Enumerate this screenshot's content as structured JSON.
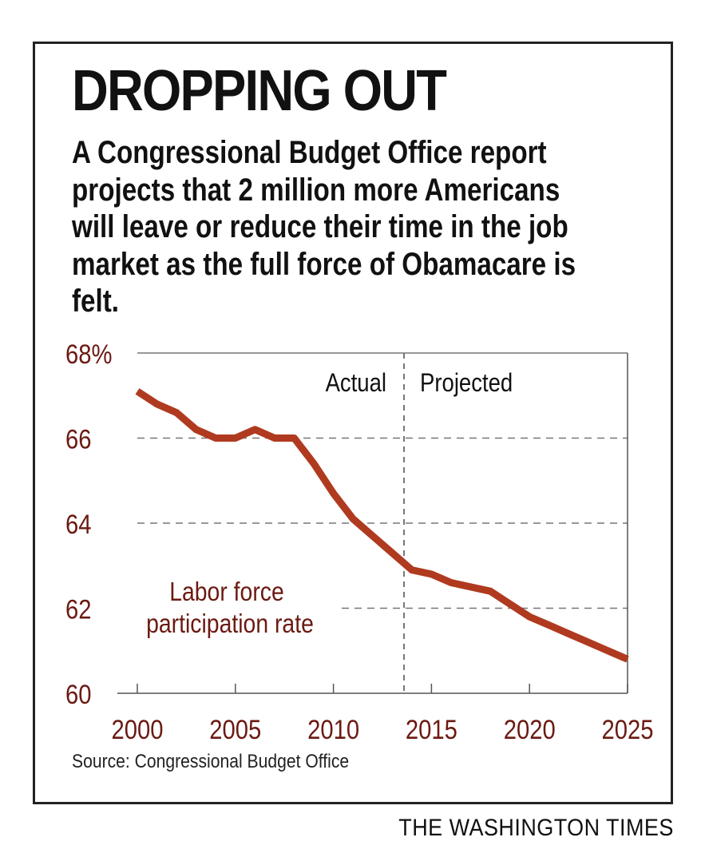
{
  "title": "DROPPING OUT",
  "subtitle": "A Congressional Budget Office report projects that 2 million more Americans will leave or reduce their time in the job market as the full force of Obamacare is felt.",
  "source": "Source: Congressional Budget Office",
  "credit": "THE WASHINGTON TIMES",
  "colors": {
    "line": "#b03a1f",
    "axis_text": "#6b1a12",
    "grid": "#777777",
    "divider": "#777777"
  },
  "chart_data": {
    "type": "line",
    "title": "DROPPING OUT",
    "xlabel": "",
    "ylabel": "",
    "xlim": [
      2000,
      2025
    ],
    "ylim": [
      60,
      68
    ],
    "x_ticks": [
      2000,
      2005,
      2010,
      2015,
      2020,
      2025
    ],
    "y_ticks": [
      {
        "value": 68,
        "label": "68%"
      },
      {
        "value": 66,
        "label": "66"
      },
      {
        "value": 64,
        "label": "64"
      },
      {
        "value": 62,
        "label": "62"
      },
      {
        "value": 60,
        "label": "60"
      }
    ],
    "grid": "horizontal dashed",
    "period_divider": 2013.6,
    "period_labels": [
      "Actual",
      "Projected"
    ],
    "series": [
      {
        "name": "Labor force participation rate",
        "x": [
          2000,
          2001,
          2002,
          2003,
          2004,
          2005,
          2006,
          2007,
          2008,
          2009,
          2010,
          2011,
          2012,
          2013,
          2014,
          2015,
          2016,
          2017,
          2018,
          2019,
          2020,
          2021,
          2022,
          2023,
          2024,
          2025
        ],
        "values": [
          67.1,
          66.8,
          66.6,
          66.2,
          66.0,
          66.0,
          66.2,
          66.0,
          66.0,
          65.4,
          64.7,
          64.1,
          63.7,
          63.3,
          62.9,
          62.8,
          62.6,
          62.5,
          62.4,
          62.1,
          61.8,
          61.6,
          61.4,
          61.2,
          61.0,
          60.8
        ]
      }
    ]
  }
}
